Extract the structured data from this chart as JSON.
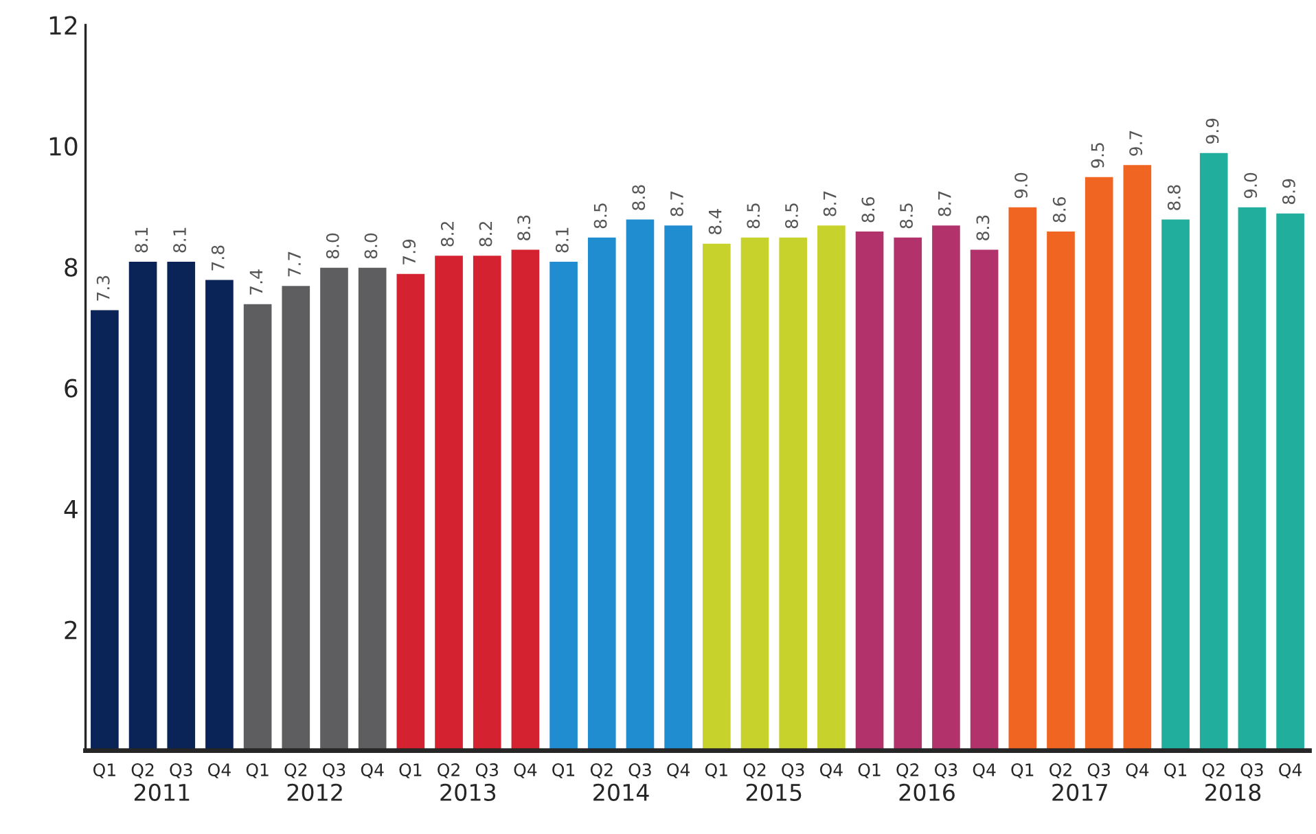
{
  "chart_data": {
    "type": "bar",
    "categories": [
      "Q1",
      "Q2",
      "Q3",
      "Q4",
      "Q1",
      "Q2",
      "Q3",
      "Q4",
      "Q1",
      "Q2",
      "Q3",
      "Q4",
      "Q1",
      "Q2",
      "Q3",
      "Q4",
      "Q1",
      "Q2",
      "Q3",
      "Q4",
      "Q1",
      "Q2",
      "Q3",
      "Q4",
      "Q1",
      "Q2",
      "Q3",
      "Q4",
      "Q1",
      "Q2",
      "Q3",
      "Q4"
    ],
    "values": [
      7.3,
      8.1,
      8.1,
      7.8,
      7.4,
      7.7,
      8.0,
      8.0,
      7.9,
      8.2,
      8.2,
      8.3,
      8.1,
      8.5,
      8.8,
      8.7,
      8.4,
      8.5,
      8.5,
      8.7,
      8.6,
      8.5,
      8.7,
      8.3,
      9.0,
      8.6,
      9.5,
      9.7,
      8.8,
      9.9,
      9.0,
      8.9
    ],
    "value_labels": [
      "7.3",
      "8.1",
      "8.1",
      "7.8",
      "7.4",
      "7.7",
      "8.0",
      "8.0",
      "7.9",
      "8.2",
      "8.2",
      "8.3",
      "8.1",
      "8.5",
      "8.8",
      "8.7",
      "8.4",
      "8.5",
      "8.5",
      "8.7",
      "8.6",
      "8.5",
      "8.7",
      "8.3",
      "9.0",
      "8.6",
      "9.5",
      "9.7",
      "8.8",
      "9.9",
      "9.0",
      "8.9"
    ],
    "colors": [
      "#0a2458",
      "#0a2458",
      "#0a2458",
      "#0a2458",
      "#5e5e60",
      "#5e5e60",
      "#5e5e60",
      "#5e5e60",
      "#d42230",
      "#d42230",
      "#d42230",
      "#d42230",
      "#1f8dd0",
      "#1f8dd0",
      "#1f8dd0",
      "#1f8dd0",
      "#c8d22c",
      "#c8d22c",
      "#c8d22c",
      "#c8d22c",
      "#b2336c",
      "#b2336c",
      "#b2336c",
      "#b2336c",
      "#f06522",
      "#f06522",
      "#f06522",
      "#f06522",
      "#22ae9c",
      "#22ae9c",
      "#22ae9c",
      "#22ae9c"
    ],
    "annotations": [
      "2011",
      "2012",
      "2013",
      "2014",
      "2015",
      "2016",
      "2017",
      "2018"
    ],
    "ylim": [
      0,
      12
    ],
    "yticks": [
      2,
      4,
      6,
      8,
      10,
      12
    ],
    "grid": false
  }
}
